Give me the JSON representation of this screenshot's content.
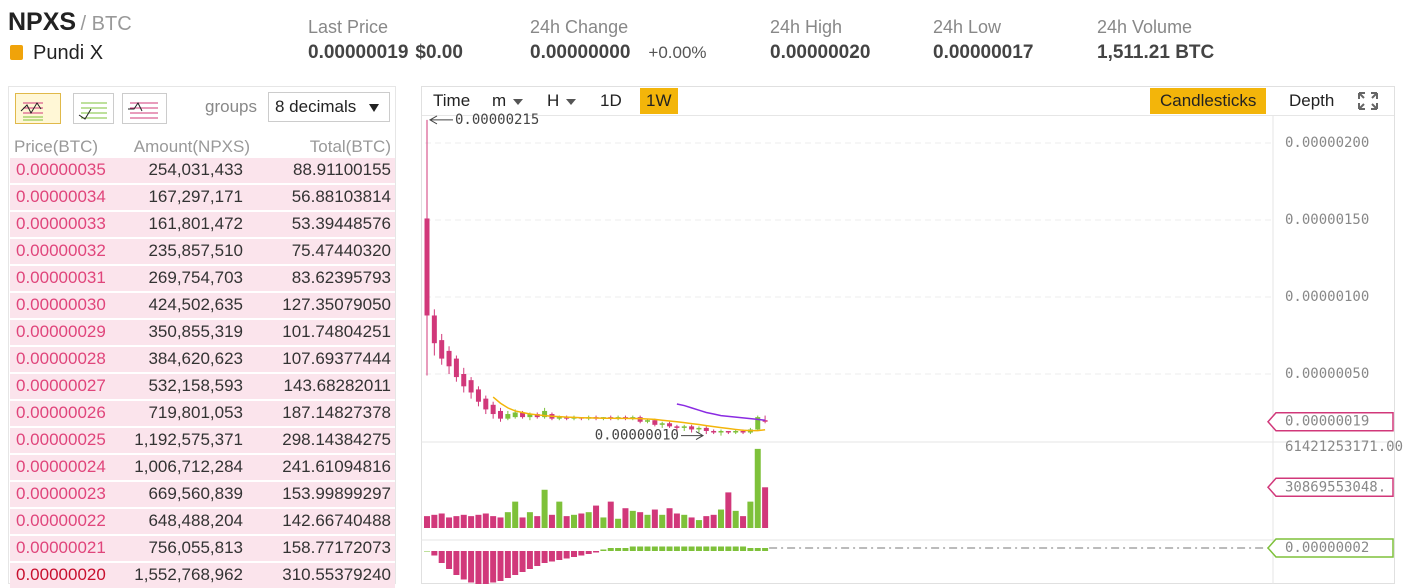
{
  "header": {
    "symbol": "NPXS",
    "quote": "/ BTC",
    "name": "Pundi X",
    "stats": [
      {
        "label": "Last Price",
        "value": "0.00000019",
        "extra": "$0.00"
      },
      {
        "label": "24h Change",
        "value": "0.00000000",
        "extra": "+0.00%"
      },
      {
        "label": "24h High",
        "value": "0.00000020"
      },
      {
        "label": "24h Low",
        "value": "0.00000017"
      },
      {
        "label": "24h Volume",
        "value": "1,511.21 BTC"
      }
    ]
  },
  "order_book": {
    "groups_label": "groups",
    "decimals": "8 decimals",
    "columns": [
      "Price(BTC)",
      "Amount(NPXS)",
      "Total(BTC)"
    ],
    "rows": [
      [
        "0.00000035",
        "254,031,433",
        "88.91100155"
      ],
      [
        "0.00000034",
        "167,297,171",
        "56.88103814"
      ],
      [
        "0.00000033",
        "161,801,472",
        "53.39448576"
      ],
      [
        "0.00000032",
        "235,857,510",
        "75.47440320"
      ],
      [
        "0.00000031",
        "269,754,703",
        "83.62395793"
      ],
      [
        "0.00000030",
        "424,502,635",
        "127.35079050"
      ],
      [
        "0.00000029",
        "350,855,319",
        "101.74804251"
      ],
      [
        "0.00000028",
        "384,620,623",
        "107.69377444"
      ],
      [
        "0.00000027",
        "532,158,593",
        "143.68282011"
      ],
      [
        "0.00000026",
        "719,801,053",
        "187.14827378"
      ],
      [
        "0.00000025",
        "1,192,575,371",
        "298.14384275"
      ],
      [
        "0.00000024",
        "1,006,712,284",
        "241.61094816"
      ],
      [
        "0.00000023",
        "669,560,839",
        "153.99899297"
      ],
      [
        "0.00000022",
        "648,488,204",
        "142.66740488"
      ],
      [
        "0.00000021",
        "756,055,813",
        "158.77172073"
      ],
      [
        "0.00000020",
        "1,552,768,962",
        "310.55379240"
      ]
    ]
  },
  "chart_toolbar": {
    "intervals": [
      "Time",
      "m",
      "H",
      "1D",
      "1W"
    ],
    "active_interval": "1W",
    "views": [
      "Candlesticks",
      "Depth"
    ],
    "active_view": "Candlesticks"
  },
  "chart": {
    "type": "candlestick",
    "colors": {
      "up": "#7ec13a",
      "down": "#d1387a",
      "ma_short": "#f3b50a",
      "ma_long": "#8a2be2"
    },
    "ylim": [
      0,
      2.2e-06
    ],
    "grid": true,
    "yticks": [
      {
        "value": 2e-06,
        "label": "0.00000200"
      },
      {
        "value": 1.5e-06,
        "label": "0.00000150"
      },
      {
        "value": 1e-06,
        "label": "0.00000100"
      },
      {
        "value": 5e-07,
        "label": "0.00000050"
      }
    ],
    "high_label": "0.00000215",
    "low_label": "0.00000010",
    "last_price_marker": {
      "value": 1.9e-07,
      "label": "0.00000019"
    },
    "candles": {
      "open": [
        1.51e-06,
        8.8e-07,
        7.2e-07,
        6.5e-07,
        6e-07,
        5e-07,
        4.6e-07,
        4e-07,
        3.4e-07,
        3e-07,
        2.6e-07,
        2.1e-07,
        2.2e-07,
        2.5e-07,
        2.2e-07,
        2.4e-07,
        2.2e-07,
        2.4e-07,
        2.1e-07,
        2.2e-07,
        2.1e-07,
        2.2e-07,
        2.1e-07,
        2.2e-07,
        2.1e-07,
        2.2e-07,
        2.1e-07,
        2.2e-07,
        2.1e-07,
        2.2e-07,
        1.9e-07,
        2e-07,
        1.7e-07,
        1.8e-07,
        1.6e-07,
        1.5e-07,
        1.6e-07,
        1.4e-07,
        1.5e-07,
        1.3e-07,
        1.2e-07,
        1.3e-07,
        1.2e-07,
        1.3e-07,
        1.2e-07,
        1.4e-07,
        2e-07
      ],
      "close": [
        8.8e-07,
        7e-07,
        6e-07,
        5.5e-07,
        4.8e-07,
        4.2e-07,
        3.8e-07,
        3.2e-07,
        2.7e-07,
        2.4e-07,
        2.1e-07,
        2.4e-07,
        2.5e-07,
        2.2e-07,
        2.4e-07,
        2.2e-07,
        2.6e-07,
        2.1e-07,
        2.2e-07,
        2.1e-07,
        2.2e-07,
        2.1e-07,
        2.2e-07,
        2.1e-07,
        2.2e-07,
        2.1e-07,
        2.2e-07,
        2.1e-07,
        2.2e-07,
        1.9e-07,
        2e-07,
        1.7e-07,
        1.8e-07,
        1.6e-07,
        1.5e-07,
        1.6e-07,
        1.4e-07,
        1.5e-07,
        1.3e-07,
        1.2e-07,
        1.3e-07,
        1.2e-07,
        1.3e-07,
        1.2e-07,
        1.4e-07,
        2.2e-07,
        1.9e-07
      ],
      "high": [
        2.15e-06,
        9.2e-07,
        7.6e-07,
        6.8e-07,
        6.2e-07,
        5.4e-07,
        4.8e-07,
        4.2e-07,
        3.6e-07,
        3.2e-07,
        2.8e-07,
        2.6e-07,
        2.7e-07,
        2.6e-07,
        2.5e-07,
        2.5e-07,
        2.8e-07,
        2.5e-07,
        2.3e-07,
        2.3e-07,
        2.3e-07,
        2.2e-07,
        2.3e-07,
        2.3e-07,
        2.2e-07,
        2.3e-07,
        2.3e-07,
        2.3e-07,
        2.3e-07,
        2.3e-07,
        2.1e-07,
        2.1e-07,
        1.9e-07,
        1.9e-07,
        1.7e-07,
        1.7e-07,
        1.7e-07,
        1.6e-07,
        1.6e-07,
        1.4e-07,
        1.4e-07,
        1.3e-07,
        1.4e-07,
        1.4e-07,
        1.5e-07,
        2.3e-07,
        2.3e-07
      ],
      "low": [
        4.9e-07,
        6.2e-07,
        5.6e-07,
        5e-07,
        4.5e-07,
        3.8e-07,
        3.4e-07,
        2.9e-07,
        2.4e-07,
        2.1e-07,
        1.9e-07,
        2e-07,
        2.1e-07,
        2.1e-07,
        2e-07,
        2.1e-07,
        2.1e-07,
        2e-07,
        2e-07,
        2e-07,
        2e-07,
        2e-07,
        2e-07,
        2e-07,
        2e-07,
        2e-07,
        2e-07,
        2e-07,
        2e-07,
        1.8e-07,
        1.8e-07,
        1.6e-07,
        1.5e-07,
        1.5e-07,
        1.3e-07,
        1.3e-07,
        1.2e-07,
        1.2e-07,
        1.1e-07,
        1.1e-07,
        1e-07,
        1.1e-07,
        1.1e-07,
        1.1e-07,
        1.1e-07,
        1.3e-07,
        1.8e-07
      ]
    },
    "ma_short": [
      null,
      null,
      null,
      null,
      null,
      null,
      null,
      null,
      null,
      3.5e-07,
      3.1e-07,
      2.8e-07,
      2.6e-07,
      2.5e-07,
      2.4e-07,
      2.35e-07,
      2.3e-07,
      2.26e-07,
      2.23e-07,
      2.2e-07,
      2.18e-07,
      2.16e-07,
      2.15e-07,
      2.14e-07,
      2.13e-07,
      2.13e-07,
      2.12e-07,
      2.12e-07,
      2.11e-07,
      2.1e-07,
      2.08e-07,
      2.05e-07,
      2e-07,
      1.95e-07,
      1.9e-07,
      1.84e-07,
      1.78e-07,
      1.72e-07,
      1.65e-07,
      1.58e-07,
      1.52e-07,
      1.46e-07,
      1.4e-07,
      1.35e-07,
      1.32e-07,
      1.32e-07,
      1.38e-07
    ],
    "ma_long": [
      null,
      null,
      null,
      null,
      null,
      null,
      null,
      null,
      null,
      null,
      null,
      null,
      null,
      null,
      null,
      null,
      null,
      null,
      null,
      null,
      null,
      null,
      null,
      null,
      null,
      null,
      null,
      null,
      null,
      null,
      null,
      null,
      null,
      null,
      3.05e-07,
      2.95e-07,
      2.8e-07,
      2.65e-07,
      2.5e-07,
      2.4e-07,
      2.3e-07,
      2.25e-07,
      2.2e-07,
      2.15e-07,
      2.1e-07,
      2.05e-07,
      2e-07
    ],
    "volume": {
      "ylim": [
        0,
        61421253171
      ],
      "yticks": [
        {
          "value": 61421253171,
          "label": "61421253171.00"
        }
      ],
      "marker": {
        "value": 30869553048,
        "label": "30869553048."
      },
      "values": [
        9000000000,
        10000000000,
        11000000000,
        8000000000,
        9000000000,
        10000000000,
        9000000000,
        10000000000,
        11000000000,
        9000000000,
        8000000000,
        12000000000,
        20000000000,
        8000000000,
        12000000000,
        9000000000,
        29000000000,
        10000000000,
        20000000000,
        9000000000,
        10000000000,
        11000000000,
        12000000000,
        17000000000,
        8000000000,
        20000000000,
        7000000000,
        15000000000,
        13000000000,
        12000000000,
        10000000000,
        14000000000,
        10000000000,
        15000000000,
        11000000000,
        10000000000,
        8000000000,
        6000000000,
        9000000000,
        10000000000,
        14000000000,
        27000000000,
        13000000000,
        9000000000,
        20000000000,
        60000000000,
        30869553048
      ]
    },
    "macd": {
      "ylim": [
        -2.2e-07,
        2e-08
      ],
      "marker": {
        "value": 2e-08,
        "label": "0.00000002"
      },
      "values": [
        0,
        -3e-08,
        -8e-08,
        -1.2e-07,
        -1.6e-07,
        -1.9e-07,
        -2.1e-07,
        -2.2e-07,
        -2.2e-07,
        -2.1e-07,
        -2e-07,
        -1.8e-07,
        -1.6e-07,
        -1.4e-07,
        -1.2e-07,
        -1e-07,
        -8e-08,
        -7e-08,
        -6e-08,
        -5e-08,
        -4e-08,
        -3e-08,
        -2e-08,
        -1e-08,
        1e-08,
        2e-08,
        2e-08,
        2e-08,
        3e-08,
        3e-08,
        3e-08,
        3e-08,
        3e-08,
        3e-08,
        3e-08,
        3e-08,
        3e-08,
        3e-08,
        3e-08,
        3e-08,
        3e-08,
        3e-08,
        3e-08,
        3e-08,
        2e-08,
        2e-08,
        2e-08
      ]
    }
  }
}
